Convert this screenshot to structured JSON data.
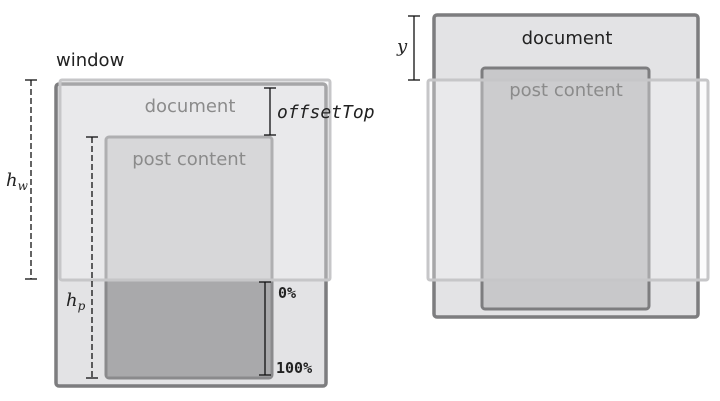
{
  "left_diagram": {
    "window_label": "window",
    "document_label": "document",
    "post_content_label": "post content",
    "offset_top_label": "offsetTop",
    "hw_label_main": "h",
    "hw_label_sub": "w",
    "hp_label_main": "h",
    "hp_label_sub": "p",
    "start_percent": "0%",
    "end_percent": "100%"
  },
  "right_diagram": {
    "document_label": "document",
    "post_content_label": "post content",
    "y_label": "y"
  },
  "colors": {
    "document_fill": "#e3e3e5",
    "document_stroke": "#7a7a7a",
    "post_fill": "#c7c7c9",
    "post_stroke": "#8a8a8a",
    "post_overlap_fill": "#a8a8aa",
    "window_fill": "#efeff1",
    "window_stroke": "#c4c4c6",
    "label_dark": "#222222",
    "label_grey": "#8b8b8b",
    "dimension_line": "#111111"
  }
}
